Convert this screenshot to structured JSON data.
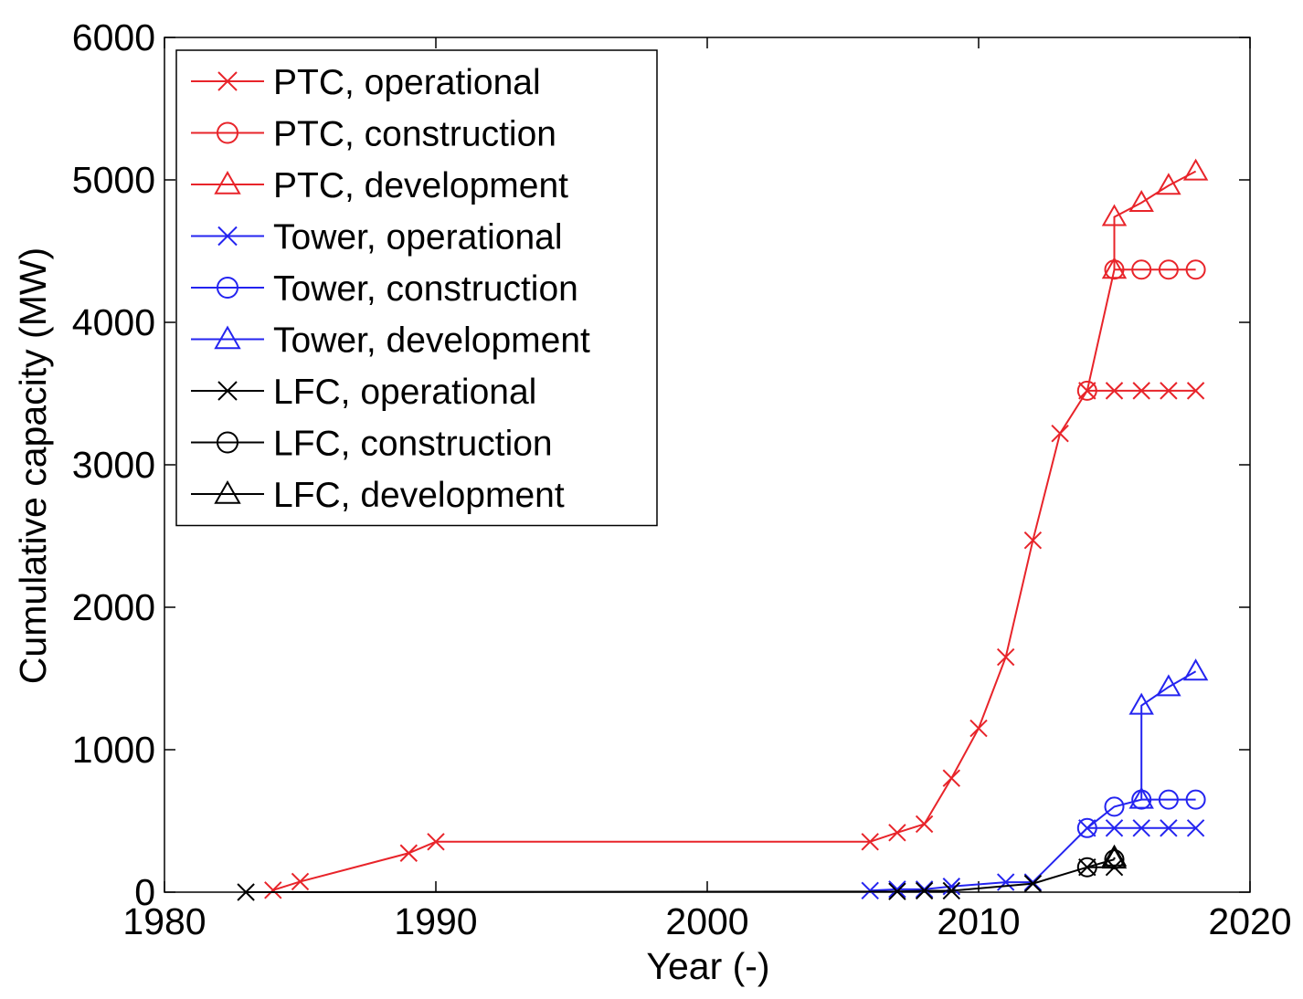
{
  "chart_data": {
    "type": "line",
    "xlabel": "Year (-)",
    "ylabel": "Cumulative capacity (MW)",
    "xlim": [
      1980,
      2020
    ],
    "ylim": [
      0,
      6000
    ],
    "x_ticks": [
      1980,
      1990,
      2000,
      2010,
      2020
    ],
    "y_ticks": [
      0,
      1000,
      2000,
      3000,
      4000,
      5000,
      6000
    ],
    "grid": false,
    "legend_position": "top-left",
    "colors": {
      "PTC": "#e8242a",
      "Tower": "#2424f0",
      "LFC": "#000000"
    },
    "series": [
      {
        "name": "PTC, operational",
        "group": "PTC",
        "marker": "x",
        "points": [
          [
            1984,
            14
          ],
          [
            1985,
            74
          ],
          [
            1989,
            274
          ],
          [
            1990,
            354
          ],
          [
            2006,
            354
          ],
          [
            2007,
            418
          ],
          [
            2008,
            478
          ],
          [
            2009,
            800
          ],
          [
            2010,
            1150
          ],
          [
            2011,
            1650
          ],
          [
            2012,
            2470
          ],
          [
            2013,
            3220
          ],
          [
            2014,
            3520
          ],
          [
            2015,
            3520
          ],
          [
            2016,
            3520
          ],
          [
            2017,
            3520
          ],
          [
            2018,
            3520
          ]
        ]
      },
      {
        "name": "PTC, construction",
        "group": "PTC",
        "marker": "o",
        "points": [
          [
            2014,
            3520
          ],
          [
            2015,
            4370
          ],
          [
            2016,
            4370
          ],
          [
            2017,
            4370
          ],
          [
            2018,
            4370
          ]
        ]
      },
      {
        "name": "PTC, development",
        "group": "PTC",
        "marker": "triangle",
        "points": [
          [
            2015,
            4370
          ],
          [
            2015,
            4740
          ],
          [
            2016,
            4840
          ],
          [
            2017,
            4960
          ],
          [
            2018,
            5060
          ]
        ]
      },
      {
        "name": "Tower, operational",
        "group": "Tower",
        "marker": "x",
        "points": [
          [
            2006,
            11
          ],
          [
            2007,
            20
          ],
          [
            2008,
            20
          ],
          [
            2009,
            40
          ],
          [
            2011,
            70
          ],
          [
            2012,
            70
          ],
          [
            2014,
            450
          ],
          [
            2015,
            450
          ],
          [
            2016,
            450
          ],
          [
            2017,
            450
          ],
          [
            2018,
            450
          ]
        ]
      },
      {
        "name": "Tower, construction",
        "group": "Tower",
        "marker": "o",
        "points": [
          [
            2014,
            450
          ],
          [
            2015,
            600
          ],
          [
            2016,
            650
          ],
          [
            2017,
            650
          ],
          [
            2018,
            650
          ]
        ]
      },
      {
        "name": "Tower, development",
        "group": "Tower",
        "marker": "triangle",
        "points": [
          [
            2016,
            650
          ],
          [
            2016,
            1310
          ],
          [
            2017,
            1440
          ],
          [
            2018,
            1550
          ]
        ]
      },
      {
        "name": "LFC, operational",
        "group": "LFC",
        "marker": "x",
        "points": [
          [
            1983,
            0
          ],
          [
            2007,
            5
          ],
          [
            2008,
            10
          ],
          [
            2009,
            10
          ],
          [
            2012,
            60
          ],
          [
            2014,
            175
          ],
          [
            2015,
            175
          ]
        ]
      },
      {
        "name": "LFC, construction",
        "group": "LFC",
        "marker": "o",
        "points": [
          [
            2014,
            175
          ],
          [
            2015,
            230
          ]
        ]
      },
      {
        "name": "LFC, development",
        "group": "LFC",
        "marker": "triangle",
        "points": [
          [
            2015,
            230
          ],
          [
            2015,
            245
          ]
        ]
      }
    ]
  }
}
